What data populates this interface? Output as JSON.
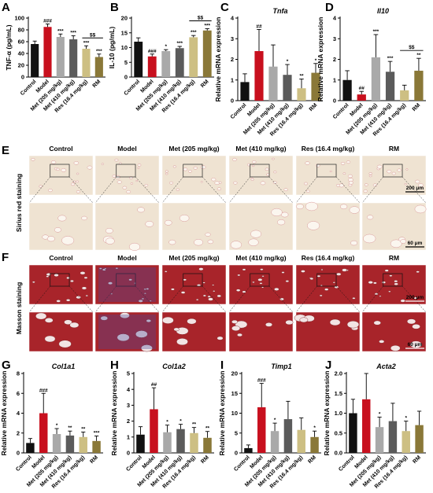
{
  "panel_letters": [
    "A",
    "B",
    "C",
    "D",
    "E",
    "F",
    "G",
    "H",
    "I",
    "J"
  ],
  "colors": {
    "Control": "#111111",
    "Model": "#c8101e",
    "Met (205 mg/kg)": "#a9a9a9",
    "Met (410 mg/kg)": "#5b5b5b",
    "Res (16.4 mg/kg)": "#cdbf83",
    "RM": "#8a7838"
  },
  "histology": {
    "columns": [
      "Control",
      "Model",
      "Met (205 mg/kg)",
      "Met (410 mg/kg)",
      "Res (16.4 mg/kg)",
      "RM"
    ],
    "row_titles": [
      "Sirius red staining",
      "Masson staining"
    ],
    "scale_top": "200 μm",
    "scale_bottom": "60 μm",
    "sirius_bg": "#efe3d2",
    "masson_bg": "#a8242a"
  },
  "chart_data": [
    {
      "panel": "A",
      "type": "bar",
      "ylabel": "TNF-α (pg/mL)",
      "title": "",
      "categories": [
        "Control",
        "Model",
        "Met (205 mg/kg)",
        "Met (410 mg/kg)",
        "Res (16.4 mg/kg)",
        "RM"
      ],
      "values": [
        56,
        85,
        68,
        64,
        48,
        34
      ],
      "errors": [
        5,
        5,
        5,
        6,
        5,
        5
      ],
      "significance": [
        "",
        "###",
        "***",
        "***",
        "***",
        "***"
      ],
      "bracket": {
        "from": 4,
        "to": 5,
        "label": "$$"
      },
      "ylim": [
        0,
        100
      ],
      "yticks": [
        0,
        20,
        40,
        60,
        80,
        100
      ]
    },
    {
      "panel": "B",
      "type": "bar",
      "ylabel": "IL-10 (pg/mL)",
      "title": "",
      "categories": [
        "Control",
        "Model",
        "Met (205 mg/kg)",
        "Met (410 mg/kg)",
        "Res (16.4 mg/kg)",
        "RM"
      ],
      "values": [
        12,
        7,
        8.8,
        9.8,
        13.5,
        15.8
      ],
      "errors": [
        1.3,
        0.8,
        0.5,
        0.6,
        0.6,
        0.6
      ],
      "significance": [
        "",
        "###",
        "*",
        "***",
        "***",
        "***"
      ],
      "bracket": {
        "from": 4,
        "to": 5,
        "label": "$$"
      },
      "ylim": [
        0,
        20
      ],
      "yticks": [
        0,
        5,
        10,
        15,
        20
      ]
    },
    {
      "panel": "C",
      "type": "bar",
      "ylabel": "Relative mRNA expression",
      "title": "Tnfa",
      "categories": [
        "Control",
        "Model",
        "Met (205 mg/kg)",
        "Met (410 mg/kg)",
        "Res (16.4 mg/kg)",
        "RM"
      ],
      "values": [
        0.9,
        2.4,
        1.65,
        1.25,
        0.6,
        1.35
      ],
      "errors": [
        0.4,
        1.05,
        1.05,
        0.5,
        0.45,
        0.45
      ],
      "significance": [
        "",
        "##",
        "",
        "*",
        "**",
        "*"
      ],
      "ylim": [
        0,
        4
      ],
      "yticks": [
        0,
        1,
        2,
        3,
        4
      ]
    },
    {
      "panel": "D",
      "type": "bar",
      "ylabel": "Relative mRNA expression",
      "title": "Il10",
      "categories": [
        "Control",
        "Model",
        "Met (205 mg/kg)",
        "Met (410 mg/kg)",
        "Res (16.4 mg/kg)",
        "RM"
      ],
      "values": [
        1.0,
        0.3,
        2.1,
        1.4,
        0.5,
        1.45
      ],
      "errors": [
        0.45,
        0.15,
        1.1,
        0.5,
        0.25,
        0.6
      ],
      "significance": [
        "",
        "##",
        "***",
        "***",
        "",
        "**"
      ],
      "bracket": {
        "from": 4,
        "to": 5,
        "label": "$$"
      },
      "ylim": [
        0,
        4
      ],
      "yticks": [
        0,
        1,
        2,
        3,
        4
      ]
    },
    {
      "panel": "G",
      "type": "bar",
      "ylabel": "Relative mRNA expression",
      "title": "Col1a1",
      "categories": [
        "Control",
        "Model",
        "Met (205 mg/kg)",
        "Met (410 mg/kg)",
        "Res (16.4 mg/kg)",
        "RM"
      ],
      "values": [
        1.0,
        4.0,
        1.9,
        1.75,
        1.6,
        1.2
      ],
      "errors": [
        0.45,
        2.0,
        0.55,
        0.45,
        0.5,
        0.5
      ],
      "significance": [
        "",
        "###",
        "*",
        "**",
        "**",
        "***"
      ],
      "ylim": [
        0,
        8
      ],
      "yticks": [
        0,
        2,
        4,
        6,
        8
      ]
    },
    {
      "panel": "H",
      "type": "bar",
      "ylabel": "Relative mRNA expression",
      "title": "Col1a2",
      "categories": [
        "Control",
        "Model",
        "Met (205 mg/kg)",
        "Met (410 mg/kg)",
        "Res (16.4 mg/kg)",
        "RM"
      ],
      "values": [
        1.15,
        2.75,
        1.3,
        1.5,
        1.25,
        0.95
      ],
      "errors": [
        0.5,
        1.35,
        0.45,
        0.3,
        0.35,
        0.4
      ],
      "significance": [
        "",
        "##",
        "*",
        "*",
        "**",
        "**"
      ],
      "ylim": [
        0,
        5
      ],
      "yticks": [
        0,
        1,
        2,
        3,
        4,
        5
      ]
    },
    {
      "panel": "I",
      "type": "bar",
      "ylabel": "Relative mRNA expression",
      "title": "Timp1",
      "categories": [
        "Control",
        "Model",
        "Met (205 mg/kg)",
        "Met (410 mg/kg)",
        "Res (16.4 mg/kg)",
        "RM"
      ],
      "values": [
        1.2,
        11.5,
        5.5,
        8.5,
        5.8,
        4.0
      ],
      "errors": [
        0.8,
        6.0,
        2.0,
        4.5,
        3.0,
        1.5
      ],
      "significance": [
        "",
        "###",
        "*",
        "",
        "",
        "*"
      ],
      "ylim": [
        0,
        20
      ],
      "yticks": [
        0,
        5,
        10,
        15,
        20
      ]
    },
    {
      "panel": "J",
      "type": "bar",
      "ylabel": "Relative mRNA expression",
      "title": "Acta2",
      "categories": [
        "Control",
        "Model",
        "Met (205 mg/kg)",
        "Met (410 mg/kg)",
        "Res (16.4 mg/kg)",
        "RM"
      ],
      "values": [
        1.0,
        1.35,
        0.65,
        0.8,
        0.55,
        0.7
      ],
      "errors": [
        0.35,
        0.65,
        0.25,
        0.45,
        0.25,
        0.35
      ],
      "significance": [
        "",
        "",
        "*",
        "",
        "*",
        ""
      ],
      "ylim": [
        0,
        2.0
      ],
      "yticks": [
        0,
        0.5,
        1.0,
        1.5,
        2.0
      ]
    }
  ]
}
